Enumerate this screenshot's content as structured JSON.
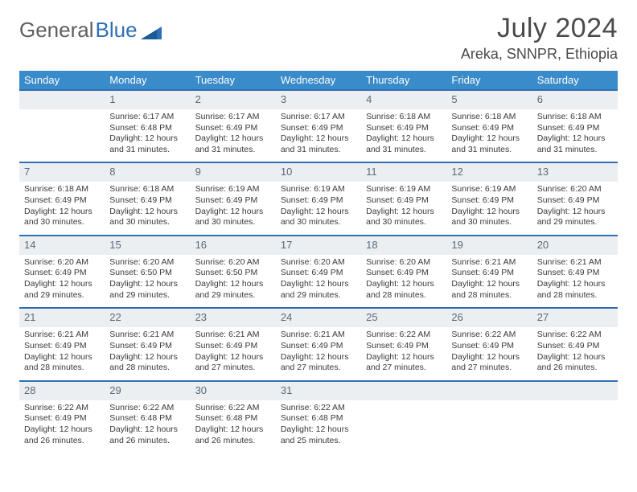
{
  "logo": {
    "part1": "General",
    "part2": "Blue"
  },
  "header": {
    "title": "July 2024",
    "location": "Areka, SNNPR, Ethiopia"
  },
  "day_names": [
    "Sunday",
    "Monday",
    "Tuesday",
    "Wednesday",
    "Thursday",
    "Friday",
    "Saturday"
  ],
  "colors": {
    "header_bg": "#3a8bc9",
    "accent": "#2f6fb4",
    "daynum_bg": "#eceff2",
    "text": "#333333"
  },
  "weeks": [
    [
      {
        "n": "",
        "sr": "",
        "ss": "",
        "dl": ""
      },
      {
        "n": "1",
        "sr": "Sunrise: 6:17 AM",
        "ss": "Sunset: 6:48 PM",
        "dl": "Daylight: 12 hours and 31 minutes."
      },
      {
        "n": "2",
        "sr": "Sunrise: 6:17 AM",
        "ss": "Sunset: 6:49 PM",
        "dl": "Daylight: 12 hours and 31 minutes."
      },
      {
        "n": "3",
        "sr": "Sunrise: 6:17 AM",
        "ss": "Sunset: 6:49 PM",
        "dl": "Daylight: 12 hours and 31 minutes."
      },
      {
        "n": "4",
        "sr": "Sunrise: 6:18 AM",
        "ss": "Sunset: 6:49 PM",
        "dl": "Daylight: 12 hours and 31 minutes."
      },
      {
        "n": "5",
        "sr": "Sunrise: 6:18 AM",
        "ss": "Sunset: 6:49 PM",
        "dl": "Daylight: 12 hours and 31 minutes."
      },
      {
        "n": "6",
        "sr": "Sunrise: 6:18 AM",
        "ss": "Sunset: 6:49 PM",
        "dl": "Daylight: 12 hours and 31 minutes."
      }
    ],
    [
      {
        "n": "7",
        "sr": "Sunrise: 6:18 AM",
        "ss": "Sunset: 6:49 PM",
        "dl": "Daylight: 12 hours and 30 minutes."
      },
      {
        "n": "8",
        "sr": "Sunrise: 6:18 AM",
        "ss": "Sunset: 6:49 PM",
        "dl": "Daylight: 12 hours and 30 minutes."
      },
      {
        "n": "9",
        "sr": "Sunrise: 6:19 AM",
        "ss": "Sunset: 6:49 PM",
        "dl": "Daylight: 12 hours and 30 minutes."
      },
      {
        "n": "10",
        "sr": "Sunrise: 6:19 AM",
        "ss": "Sunset: 6:49 PM",
        "dl": "Daylight: 12 hours and 30 minutes."
      },
      {
        "n": "11",
        "sr": "Sunrise: 6:19 AM",
        "ss": "Sunset: 6:49 PM",
        "dl": "Daylight: 12 hours and 30 minutes."
      },
      {
        "n": "12",
        "sr": "Sunrise: 6:19 AM",
        "ss": "Sunset: 6:49 PM",
        "dl": "Daylight: 12 hours and 30 minutes."
      },
      {
        "n": "13",
        "sr": "Sunrise: 6:20 AM",
        "ss": "Sunset: 6:49 PM",
        "dl": "Daylight: 12 hours and 29 minutes."
      }
    ],
    [
      {
        "n": "14",
        "sr": "Sunrise: 6:20 AM",
        "ss": "Sunset: 6:49 PM",
        "dl": "Daylight: 12 hours and 29 minutes."
      },
      {
        "n": "15",
        "sr": "Sunrise: 6:20 AM",
        "ss": "Sunset: 6:50 PM",
        "dl": "Daylight: 12 hours and 29 minutes."
      },
      {
        "n": "16",
        "sr": "Sunrise: 6:20 AM",
        "ss": "Sunset: 6:50 PM",
        "dl": "Daylight: 12 hours and 29 minutes."
      },
      {
        "n": "17",
        "sr": "Sunrise: 6:20 AM",
        "ss": "Sunset: 6:49 PM",
        "dl": "Daylight: 12 hours and 29 minutes."
      },
      {
        "n": "18",
        "sr": "Sunrise: 6:20 AM",
        "ss": "Sunset: 6:49 PM",
        "dl": "Daylight: 12 hours and 28 minutes."
      },
      {
        "n": "19",
        "sr": "Sunrise: 6:21 AM",
        "ss": "Sunset: 6:49 PM",
        "dl": "Daylight: 12 hours and 28 minutes."
      },
      {
        "n": "20",
        "sr": "Sunrise: 6:21 AM",
        "ss": "Sunset: 6:49 PM",
        "dl": "Daylight: 12 hours and 28 minutes."
      }
    ],
    [
      {
        "n": "21",
        "sr": "Sunrise: 6:21 AM",
        "ss": "Sunset: 6:49 PM",
        "dl": "Daylight: 12 hours and 28 minutes."
      },
      {
        "n": "22",
        "sr": "Sunrise: 6:21 AM",
        "ss": "Sunset: 6:49 PM",
        "dl": "Daylight: 12 hours and 28 minutes."
      },
      {
        "n": "23",
        "sr": "Sunrise: 6:21 AM",
        "ss": "Sunset: 6:49 PM",
        "dl": "Daylight: 12 hours and 27 minutes."
      },
      {
        "n": "24",
        "sr": "Sunrise: 6:21 AM",
        "ss": "Sunset: 6:49 PM",
        "dl": "Daylight: 12 hours and 27 minutes."
      },
      {
        "n": "25",
        "sr": "Sunrise: 6:22 AM",
        "ss": "Sunset: 6:49 PM",
        "dl": "Daylight: 12 hours and 27 minutes."
      },
      {
        "n": "26",
        "sr": "Sunrise: 6:22 AM",
        "ss": "Sunset: 6:49 PM",
        "dl": "Daylight: 12 hours and 27 minutes."
      },
      {
        "n": "27",
        "sr": "Sunrise: 6:22 AM",
        "ss": "Sunset: 6:49 PM",
        "dl": "Daylight: 12 hours and 26 minutes."
      }
    ],
    [
      {
        "n": "28",
        "sr": "Sunrise: 6:22 AM",
        "ss": "Sunset: 6:49 PM",
        "dl": "Daylight: 12 hours and 26 minutes."
      },
      {
        "n": "29",
        "sr": "Sunrise: 6:22 AM",
        "ss": "Sunset: 6:48 PM",
        "dl": "Daylight: 12 hours and 26 minutes."
      },
      {
        "n": "30",
        "sr": "Sunrise: 6:22 AM",
        "ss": "Sunset: 6:48 PM",
        "dl": "Daylight: 12 hours and 26 minutes."
      },
      {
        "n": "31",
        "sr": "Sunrise: 6:22 AM",
        "ss": "Sunset: 6:48 PM",
        "dl": "Daylight: 12 hours and 25 minutes."
      },
      {
        "n": "",
        "sr": "",
        "ss": "",
        "dl": ""
      },
      {
        "n": "",
        "sr": "",
        "ss": "",
        "dl": ""
      },
      {
        "n": "",
        "sr": "",
        "ss": "",
        "dl": ""
      }
    ]
  ]
}
